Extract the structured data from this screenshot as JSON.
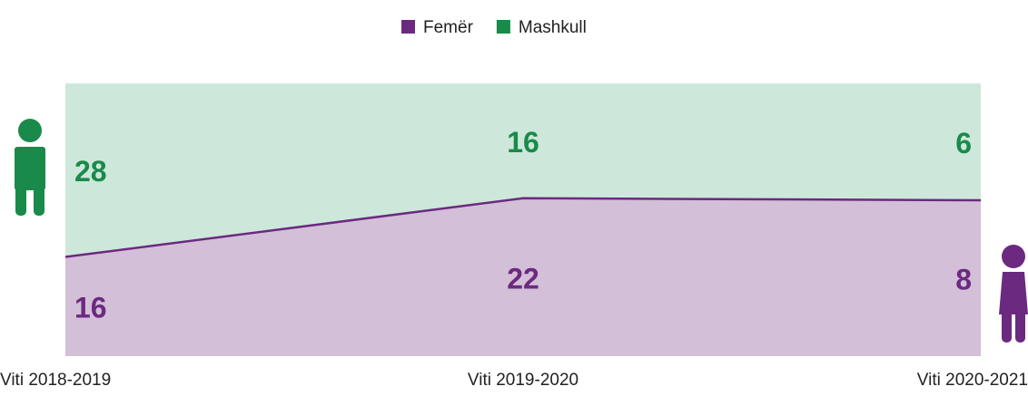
{
  "chart_data": {
    "type": "area",
    "stacked": "percent",
    "categories": [
      "Viti 2018-2019",
      "Viti 2019-2020",
      "Viti 2020-2021"
    ],
    "series": [
      {
        "name": "Femër",
        "color": "#6b2a7f",
        "fill": "#d3bfd8",
        "values": [
          16,
          22,
          8
        ]
      },
      {
        "name": "Mashkull",
        "color": "#1a8a4a",
        "fill": "#cde8da",
        "values": [
          28,
          16,
          6
        ]
      }
    ],
    "legend": "top"
  }
}
